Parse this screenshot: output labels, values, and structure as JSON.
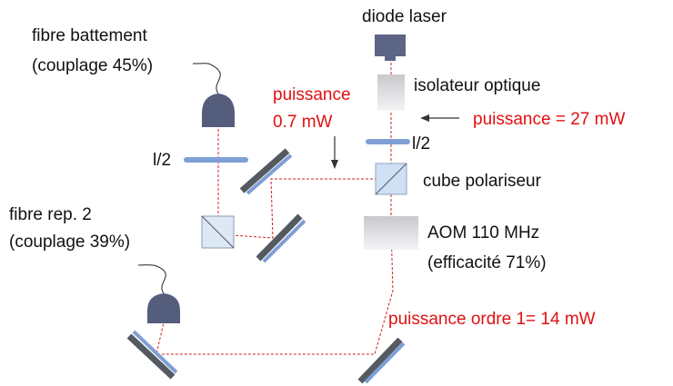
{
  "labels": {
    "diode": "diode laser",
    "fibre_battement": [
      "fibre battement",
      "(couplage 45%)"
    ],
    "puissance_battement": [
      "puissance",
      "0.7 mW"
    ],
    "isolateur": "isolateur optique",
    "puissance_entree": "puissance = 27 mW",
    "lambda_left": "l/2",
    "lambda_right": "l/2",
    "cube": "cube polariseur",
    "fibre_rep": [
      "fibre rep. 2",
      "(couplage 39%)"
    ],
    "aom": [
      "AOM 110 MHz",
      "(efficacité 71%)"
    ],
    "puissance_ordre": "puissance ordre 1= 14 mW"
  }
}
